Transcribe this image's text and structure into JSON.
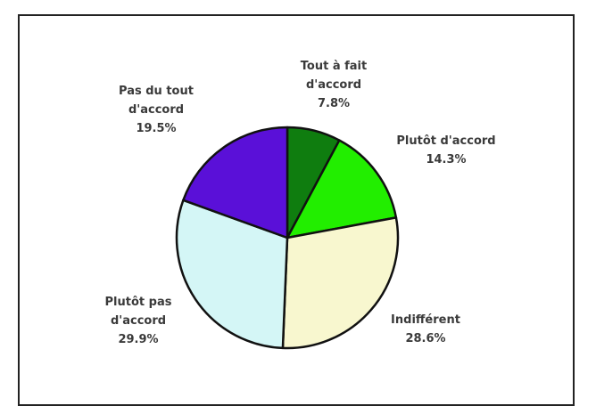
{
  "chart_data": {
    "type": "pie",
    "title": "",
    "slices": [
      {
        "label_lines": [
          "Tout à fait",
          "d'accord",
          "7.8%"
        ],
        "value": 7.8,
        "color": "#0f7d0f"
      },
      {
        "label_lines": [
          "Plutôt d'accord",
          "14.3%"
        ],
        "value": 14.3,
        "color": "#22ee00"
      },
      {
        "label_lines": [
          "Indifférent",
          "28.6%"
        ],
        "value": 28.6,
        "color": "#f8f7cf"
      },
      {
        "label_lines": [
          "Plutôt pas",
          "d'accord",
          "29.9%"
        ],
        "value": 29.9,
        "color": "#d4f6f6"
      },
      {
        "label_lines": [
          "Pas du tout",
          "d'accord",
          "19.5%"
        ],
        "value": 19.5,
        "color": "#5a10d8"
      }
    ],
    "start": "12 o'clock",
    "direction": "clockwise"
  }
}
